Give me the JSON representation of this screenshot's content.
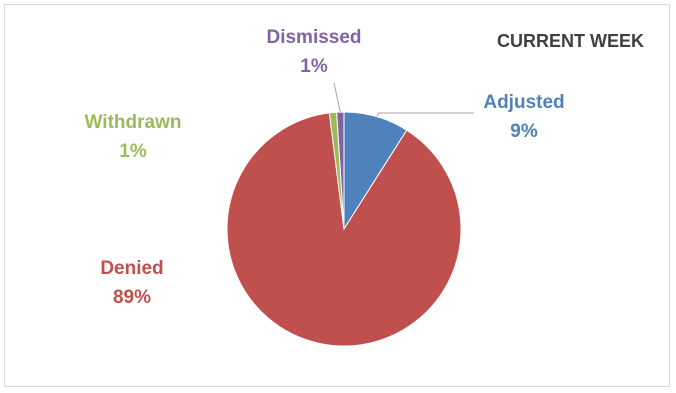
{
  "chart_data": {
    "type": "pie",
    "title": "CURRENT WEEK",
    "slices": [
      {
        "label": "Adjusted",
        "percent_label": "9%",
        "value": 9,
        "color": "#4f81bd"
      },
      {
        "label": "Denied",
        "percent_label": "89%",
        "value": 89,
        "color": "#c0504d"
      },
      {
        "label": "Withdrawn",
        "percent_label": "1%",
        "value": 1,
        "color": "#9bbb59"
      },
      {
        "label": "Dismissed",
        "percent_label": "1%",
        "value": 1,
        "color": "#8064a2"
      }
    ],
    "start_angle_deg": 0,
    "direction": "clockwise",
    "legend": "none",
    "data_labels": "outside-with-leader-lines"
  }
}
